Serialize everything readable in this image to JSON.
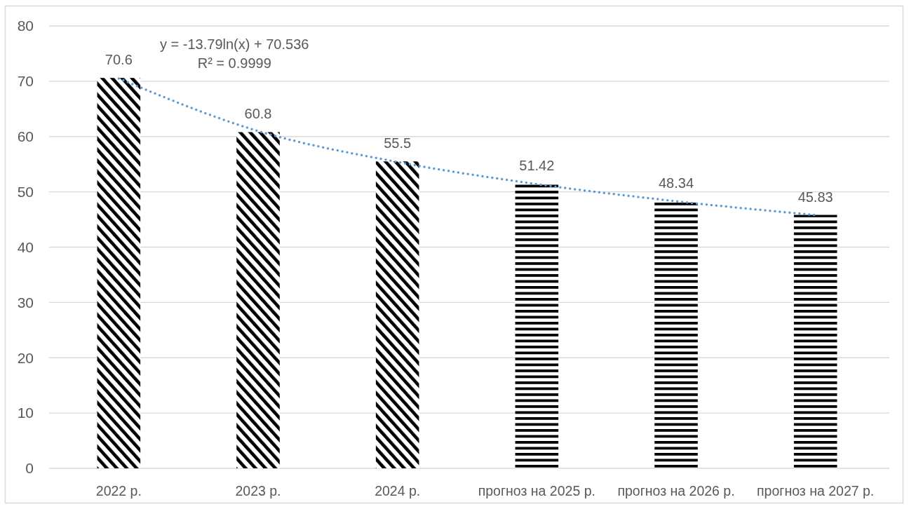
{
  "chart_data": {
    "type": "bar",
    "stacked": true,
    "categories": [
      "2022 р.",
      "2023 р.",
      "2024 р.",
      "прогноз на 2025 р.",
      "прогноз на 2026 р.",
      "прогноз на 2027 р."
    ],
    "series": [
      {
        "color": "#000000",
        "values": [
          70.6,
          60.8,
          55.5,
          null,
          null,
          null
        ],
        "value_labels": [
          "70.6",
          "60.8",
          "55.5",
          null,
          null,
          null
        ]
      },
      {
        "color": "#000000",
        "values": [
          null,
          null,
          null,
          51.42,
          48.34,
          45.83
        ],
        "value_labels": [
          null,
          null,
          null,
          "51.42",
          "48.34",
          "45.83"
        ]
      },
      {
        "type": "line",
        "color": "#5b9bd5",
        "line_style": "dotted",
        "values": [
          70.5,
          61.0,
          55.4,
          51.4,
          48.3,
          45.8
        ]
      }
    ],
    "ylim": [
      0,
      80
    ],
    "yticks": [
      0,
      10,
      20,
      30,
      40,
      50,
      60,
      70,
      80
    ],
    "grid": "y",
    "annotations": [
      "y = -13.79ln(x) + 70.536",
      "R² = 0.9999"
    ]
  }
}
